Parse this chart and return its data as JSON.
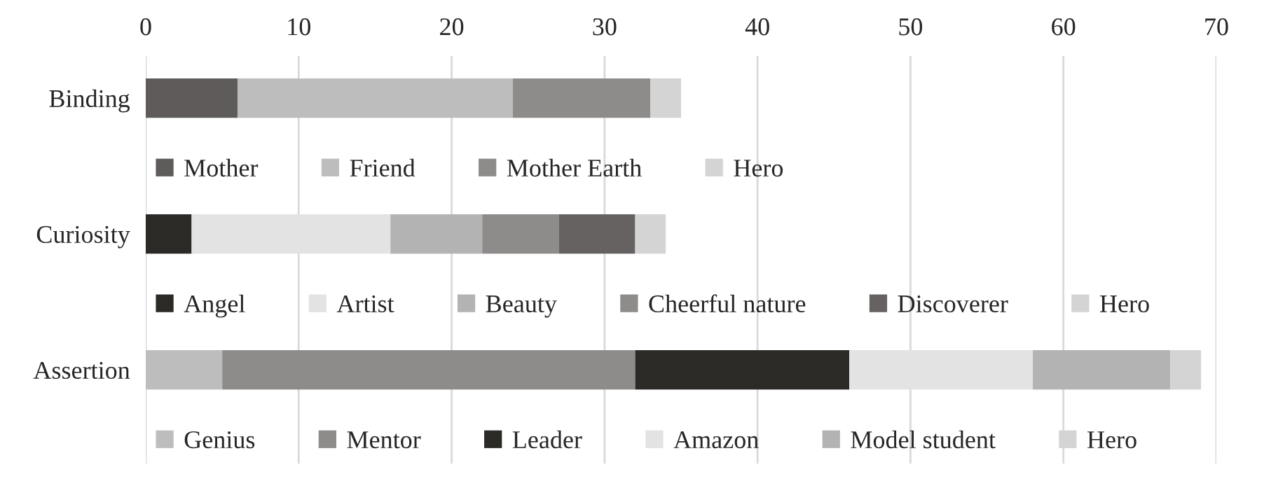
{
  "chart_data": [
    {
      "type": "bar",
      "orientation": "horizontal",
      "stacked": true,
      "categories": [
        "Binding"
      ],
      "xlim": [
        0,
        70
      ],
      "xticks": [
        0,
        10,
        20,
        30,
        40,
        50,
        60,
        70
      ],
      "grid": "x",
      "legend": "bottom",
      "series": [
        {
          "name": "Mother",
          "color": "#5f5b5b",
          "values": [
            6
          ]
        },
        {
          "name": "Friend",
          "color": "#bdbdbd",
          "values": [
            18
          ]
        },
        {
          "name": "Mother Earth",
          "color": "#8e8b8b",
          "values": [
            9
          ]
        },
        {
          "name": "Hero",
          "color": "#d4d4d4",
          "values": [
            2
          ]
        }
      ]
    },
    {
      "type": "bar",
      "orientation": "horizontal",
      "stacked": true,
      "categories": [
        "Curiosity"
      ],
      "xlim": [
        0,
        70
      ],
      "xticks": [
        0,
        10,
        20,
        30,
        40,
        50,
        60,
        70
      ],
      "grid": "x",
      "legend": "bottom",
      "tick_labels": "y",
      "series": [
        {
          "name": "Angel",
          "color": "#2b2a27",
          "values": [
            3
          ]
        },
        {
          "name": "Artist",
          "color": "#e3e3e3",
          "values": [
            13
          ]
        },
        {
          "name": "Beauty",
          "color": "#b3b3b3",
          "values": [
            6
          ]
        },
        {
          "name": "Cheerful nature",
          "color": "#8e8b8b",
          "values": [
            5
          ]
        },
        {
          "name": "Discoverer",
          "color": "#666262",
          "values": [
            5
          ]
        },
        {
          "name": "Hero",
          "color": "#d4d4d4",
          "values": [
            2
          ]
        }
      ]
    },
    {
      "type": "bar",
      "orientation": "horizontal",
      "stacked": true,
      "categories": [
        "Assertion"
      ],
      "xlim": [
        0,
        70
      ],
      "xticks": [
        0,
        10,
        20,
        30,
        40,
        50,
        60,
        70
      ],
      "grid": "x",
      "legend": "bottom",
      "tick_labels": "y",
      "series": [
        {
          "name": "Genius",
          "color": "#bdbdbd",
          "values": [
            5
          ]
        },
        {
          "name": "Mentor",
          "color": "#8e8b8b",
          "values": [
            27
          ]
        },
        {
          "name": "Leader",
          "color": "#2b2a27",
          "values": [
            14
          ]
        },
        {
          "name": "Amazon",
          "color": "#e3e3e3",
          "values": [
            12
          ]
        },
        {
          "name": "Model student",
          "color": "#b3b3b3",
          "values": [
            9
          ]
        },
        {
          "name": "Hero",
          "color": "#d4d4d4",
          "values": [
            2
          ]
        }
      ]
    }
  ]
}
